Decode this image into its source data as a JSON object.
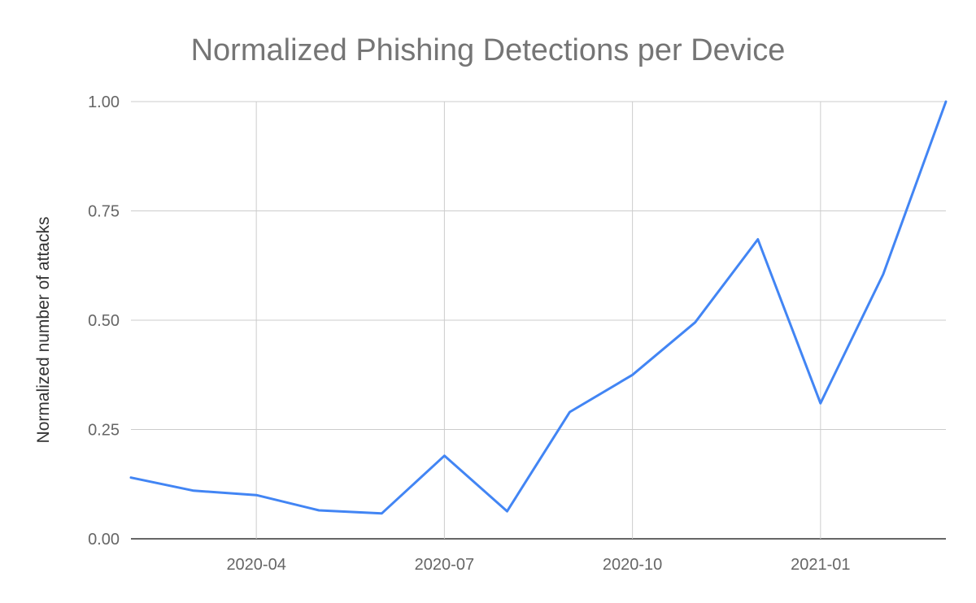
{
  "chart_data": {
    "type": "line",
    "title": "Normalized Phishing Detections per Device",
    "xlabel": "",
    "ylabel": "Normalized number of attacks",
    "x": [
      "2020-02",
      "2020-03",
      "2020-04",
      "2020-05",
      "2020-06",
      "2020-07",
      "2020-08",
      "2020-09",
      "2020-10",
      "2020-11",
      "2020-12",
      "2021-01",
      "2021-02",
      "2021-03"
    ],
    "series": [
      {
        "values": [
          0.14,
          0.11,
          0.1,
          0.065,
          0.058,
          0.19,
          0.063,
          0.29,
          0.375,
          0.495,
          0.685,
          0.31,
          0.605,
          1.0
        ]
      }
    ],
    "ylim": [
      0,
      1
    ],
    "yticks": [
      "0.00",
      "0.25",
      "0.50",
      "0.75",
      "1.00"
    ],
    "xticks": [
      "2020-04",
      "2020-07",
      "2020-10",
      "2021-01"
    ],
    "grid": true,
    "line_color": "#4285f4",
    "grid_color": "#cccccc",
    "axis_color": "#333333"
  }
}
